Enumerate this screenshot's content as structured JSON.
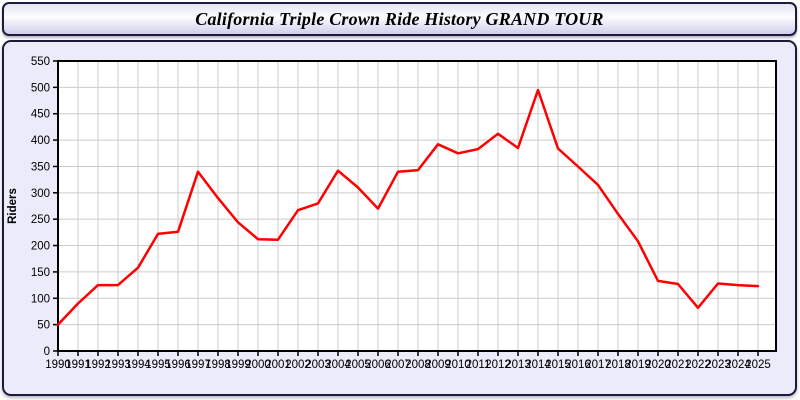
{
  "title": "California Triple Crown Ride History GRAND TOUR",
  "colors": {
    "line": "#ff0000",
    "grid": "#cccccc",
    "axis": "#000000",
    "plot_background": "#ffffff",
    "panel_background": "#ebebfa",
    "border": "#1c1c3a",
    "tick_label": "#000000"
  },
  "chart_data": {
    "type": "line",
    "title": "California Triple Crown Ride History GRAND TOUR",
    "xlabel": "",
    "ylabel": "Riders",
    "ylim": [
      0,
      550
    ],
    "ytick_step": 50,
    "grid": true,
    "legend_position": "none",
    "x": [
      1990,
      1991,
      1992,
      1993,
      1994,
      1995,
      1996,
      1997,
      1998,
      1999,
      2000,
      2001,
      2002,
      2003,
      2004,
      2005,
      2006,
      2007,
      2008,
      2009,
      2010,
      2011,
      2012,
      2013,
      2014,
      2015,
      2016,
      2017,
      2018,
      2019,
      2020,
      2021,
      2022,
      2023,
      2024,
      2025
    ],
    "series": [
      {
        "name": "Riders",
        "color": "#ff0000",
        "values": [
          50,
          90,
          125,
          125,
          158,
          222,
          226,
          340,
          290,
          244,
          212,
          211,
          267,
          280,
          342,
          310,
          270,
          340,
          343,
          392,
          375,
          383,
          412,
          385,
          495,
          384,
          350,
          315,
          260,
          208,
          133,
          127,
          82,
          128,
          125,
          123
        ]
      }
    ]
  }
}
